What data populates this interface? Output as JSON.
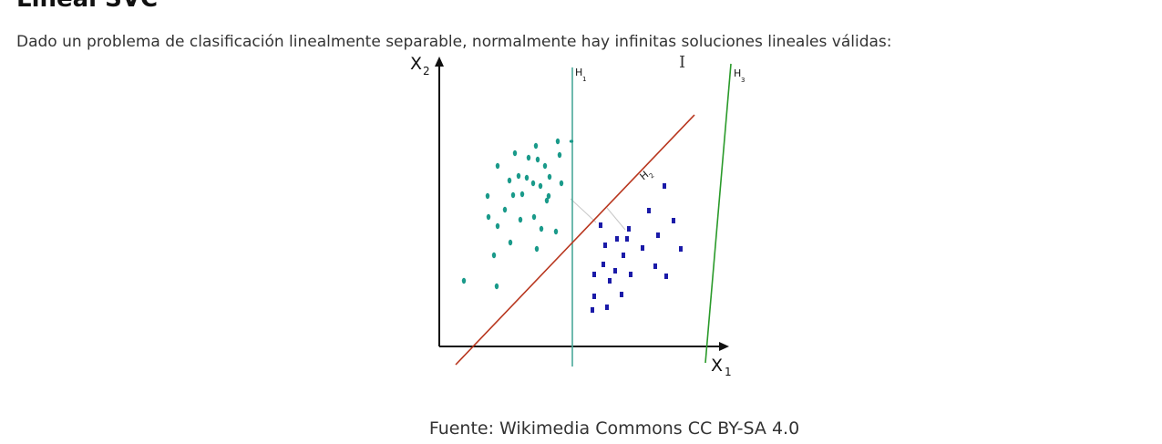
{
  "page": {
    "heading": "Lineal SVC",
    "intro": "Dado un problema de clasificación linealmente separable, normalmente hay infinitas soluciones lineales válidas:",
    "caption": "Fuente: Wikimedia Commons CC BY-SA 4.0"
  },
  "figure": {
    "x_axis_label": "X",
    "x_axis_subscript": "1",
    "y_axis_label": "X",
    "y_axis_subscript": "2",
    "h1_label": "H",
    "h1_subscript": "1",
    "h2_label": "H",
    "h2_subscript": "2",
    "h3_label": "H",
    "h3_subscript": "3",
    "colors": {
      "class_a": "#1a9a8a",
      "class_b": "#1a1aa8",
      "h1": "#4aa89a",
      "h2": "#b8361e",
      "h3": "#2a9a2a",
      "axis": "#111111",
      "margin_line": "#c8c8c8"
    },
    "icons": {
      "cursor": "text-cursor-icon"
    }
  }
}
